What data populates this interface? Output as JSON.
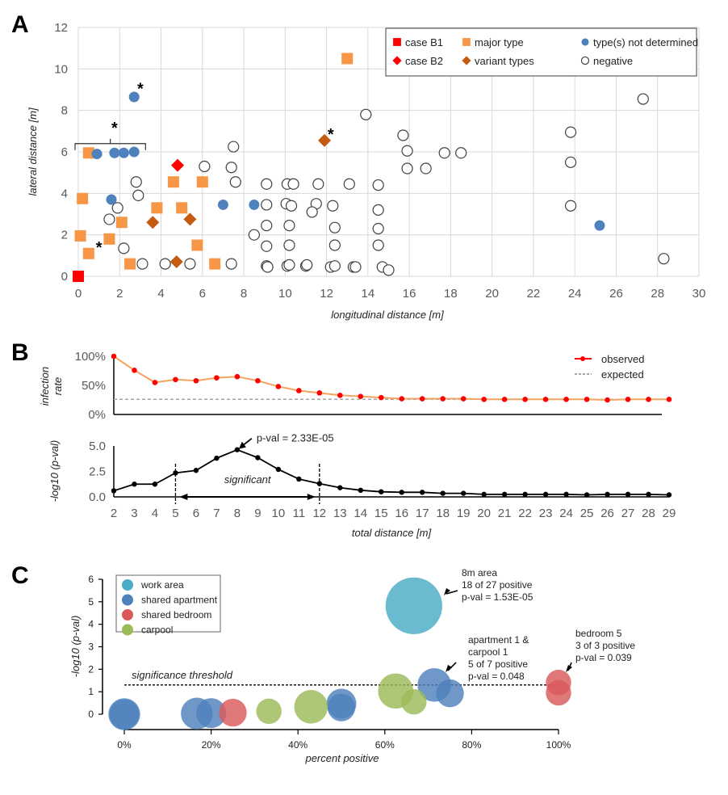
{
  "panels": {
    "A": {
      "letter": "A"
    },
    "B": {
      "letter": "B"
    },
    "C": {
      "letter": "C"
    }
  },
  "chart_data": [
    {
      "id": "A",
      "type": "scatter",
      "title": "",
      "xlabel": "longitudinal distance [m]",
      "ylabel": "lateral distance [m]",
      "xlim": [
        0,
        30
      ],
      "ylim": [
        0,
        12
      ],
      "xticks": [
        "0",
        "2",
        "4",
        "6",
        "8",
        "10",
        "12",
        "14",
        "16",
        "18",
        "20",
        "22",
        "24",
        "26",
        "28",
        "30"
      ],
      "yticks": [
        "0",
        "2",
        "4",
        "6",
        "8",
        "10",
        "12"
      ],
      "grid": true,
      "legend_position": "top-right",
      "colors": {
        "case_b1": "#ff0000",
        "case_b2": "#ff0000",
        "major_type": "#f79646",
        "variant_types": "#c55a11",
        "not_determined": "#4f81bd",
        "negative": "#ffffff"
      },
      "legend": [
        {
          "key": "case_b1",
          "label": "case B1",
          "marker": "square"
        },
        {
          "key": "major_type",
          "label": "major type",
          "marker": "square"
        },
        {
          "key": "not_determined",
          "label": "type(s) not determined",
          "marker": "circle"
        },
        {
          "key": "case_b2",
          "label": "case B2",
          "marker": "diamond"
        },
        {
          "key": "variant_types",
          "label": "variant types",
          "marker": "diamond"
        },
        {
          "key": "negative",
          "label": "negative",
          "marker": "open-circle"
        }
      ],
      "series": [
        {
          "key": "case_b1",
          "name": "case B1",
          "points": [
            [
              0,
              0
            ]
          ]
        },
        {
          "key": "case_b2",
          "name": "case B2",
          "points": [
            [
              4.8,
              5.35
            ]
          ]
        },
        {
          "key": "major_type",
          "name": "major type",
          "points": [
            [
              0.5,
              5.95
            ],
            [
              0.2,
              3.75
            ],
            [
              0.1,
              1.95
            ],
            [
              0.5,
              1.1
            ],
            [
              2.1,
              2.6
            ],
            [
              2.5,
              0.6
            ],
            [
              1.5,
              1.8
            ],
            [
              3.8,
              3.3
            ],
            [
              4.6,
              4.55
            ],
            [
              5.0,
              3.3
            ],
            [
              5.75,
              1.5
            ],
            [
              6.0,
              4.55
            ],
            [
              6.6,
              0.6
            ],
            [
              13.0,
              10.5
            ]
          ]
        },
        {
          "key": "variant_types",
          "name": "variant types",
          "points": [
            [
              3.6,
              2.6
            ],
            [
              4.75,
              0.7
            ],
            [
              5.4,
              2.75
            ],
            [
              11.9,
              6.55
            ]
          ]
        },
        {
          "key": "not_determined",
          "name": "type(s) not determined",
          "points": [
            [
              2.7,
              8.65
            ],
            [
              0.9,
              5.9
            ],
            [
              1.75,
              5.95
            ],
            [
              2.2,
              5.95
            ],
            [
              2.7,
              6.0
            ],
            [
              1.6,
              3.7
            ],
            [
              7.0,
              3.45
            ],
            [
              8.5,
              3.45
            ],
            [
              25.2,
              2.45
            ]
          ]
        },
        {
          "key": "negative",
          "name": "negative",
          "points": [
            [
              2.8,
              4.55
            ],
            [
              2.9,
              3.9
            ],
            [
              1.9,
              3.3
            ],
            [
              1.5,
              2.75
            ],
            [
              2.2,
              1.35
            ],
            [
              3.1,
              0.6
            ],
            [
              4.2,
              0.6
            ],
            [
              5.4,
              0.6
            ],
            [
              7.4,
              0.6
            ],
            [
              6.1,
              5.3
            ],
            [
              7.4,
              5.25
            ],
            [
              7.5,
              6.25
            ],
            [
              7.6,
              4.55
            ],
            [
              8.5,
              2.0
            ],
            [
              9.1,
              4.45
            ],
            [
              9.1,
              3.45
            ],
            [
              9.1,
              2.45
            ],
            [
              9.1,
              1.45
            ],
            [
              9.1,
              0.5
            ],
            [
              9.15,
              0.45
            ],
            [
              10.1,
              4.45
            ],
            [
              10.05,
              3.5
            ],
            [
              10.3,
              3.4
            ],
            [
              10.2,
              2.45
            ],
            [
              10.2,
              1.5
            ],
            [
              10.1,
              0.5
            ],
            [
              10.2,
              0.55
            ],
            [
              11.0,
              0.5
            ],
            [
              11.05,
              0.55
            ],
            [
              10.4,
              4.45
            ],
            [
              11.6,
              4.45
            ],
            [
              11.5,
              3.5
            ],
            [
              11.3,
              3.1
            ],
            [
              12.3,
              3.4
            ],
            [
              12.4,
              2.35
            ],
            [
              12.4,
              1.5
            ],
            [
              12.2,
              0.45
            ],
            [
              12.4,
              0.5
            ],
            [
              13.1,
              4.45
            ],
            [
              13.3,
              0.45
            ],
            [
              13.4,
              0.45
            ],
            [
              14.5,
              4.4
            ],
            [
              14.5,
              3.2
            ],
            [
              14.5,
              2.3
            ],
            [
              14.5,
              1.5
            ],
            [
              14.7,
              0.45
            ],
            [
              15.0,
              0.3
            ],
            [
              13.9,
              7.8
            ],
            [
              15.7,
              6.8
            ],
            [
              15.9,
              6.05
            ],
            [
              15.9,
              5.2
            ],
            [
              16.8,
              5.2
            ],
            [
              17.7,
              5.95
            ],
            [
              18.5,
              5.95
            ],
            [
              23.8,
              6.95
            ],
            [
              23.8,
              5.5
            ],
            [
              23.8,
              3.4
            ],
            [
              27.3,
              8.55
            ],
            [
              28.3,
              0.85
            ]
          ]
        }
      ],
      "annotations": [
        {
          "text": "*",
          "x": 3.0,
          "y": 9.1
        },
        {
          "text": "*",
          "x": 12.2,
          "y": 6.9
        },
        {
          "text": "*",
          "x": 1.0,
          "y": 1.45
        },
        {
          "text": "*",
          "x": 1.75,
          "y": 7.2,
          "bracket_from": 0,
          "bracket_to": 3.25,
          "bracket_y": 6.4
        }
      ]
    },
    {
      "id": "B-top",
      "type": "line",
      "xlabel": "",
      "ylabel": "infection rate",
      "ylim": [
        0,
        1
      ],
      "yticks": [
        "0%",
        "50%",
        "100%"
      ],
      "legend_position": "top-right",
      "legend": [
        {
          "label": "observed",
          "color": "#ff0000",
          "style": "line-marker"
        },
        {
          "label": "expected",
          "color": "#a6a6a6",
          "style": "dashed"
        }
      ],
      "x": [
        2,
        3,
        4,
        5,
        6,
        7,
        8,
        9,
        10,
        11,
        12,
        13,
        14,
        15,
        16,
        17,
        18,
        19,
        20,
        21,
        22,
        23,
        24,
        25,
        26,
        27,
        28,
        29
      ],
      "series": [
        {
          "name": "observed",
          "color": "#ff0000",
          "line_color": "#f4a460",
          "values": [
            1.0,
            0.76,
            0.55,
            0.6,
            0.58,
            0.63,
            0.65,
            0.58,
            0.48,
            0.41,
            0.37,
            0.33,
            0.31,
            0.29,
            0.27,
            0.27,
            0.27,
            0.27,
            0.26,
            0.26,
            0.26,
            0.26,
            0.26,
            0.26,
            0.25,
            0.26,
            0.26,
            0.26
          ]
        },
        {
          "name": "expected",
          "color": "#a6a6a6",
          "values_constant": 0.26
        }
      ]
    },
    {
      "id": "B-bottom",
      "type": "line",
      "xlabel": "total distance [m]",
      "ylabel": "-log10 (p-val)",
      "ylim": [
        0,
        5
      ],
      "yticks": [
        "0.0",
        "2.5",
        "5.0"
      ],
      "xticks": [
        "2",
        "3",
        "4",
        "5",
        "6",
        "7",
        "8",
        "9",
        "10",
        "11",
        "12",
        "13",
        "14",
        "15",
        "16",
        "17",
        "18",
        "19",
        "20",
        "21",
        "22",
        "23",
        "24",
        "25",
        "26",
        "27",
        "28",
        "29"
      ],
      "x": [
        2,
        3,
        4,
        5,
        6,
        7,
        8,
        9,
        10,
        11,
        12,
        13,
        14,
        15,
        16,
        17,
        18,
        19,
        20,
        21,
        22,
        23,
        24,
        25,
        26,
        27,
        28,
        29
      ],
      "series": [
        {
          "name": "-log10(p-val)",
          "color": "#000000",
          "values": [
            0.6,
            1.25,
            1.25,
            2.35,
            2.6,
            3.8,
            4.63,
            3.85,
            2.7,
            1.75,
            1.3,
            0.9,
            0.65,
            0.5,
            0.45,
            0.45,
            0.35,
            0.35,
            0.25,
            0.25,
            0.25,
            0.25,
            0.25,
            0.2,
            0.25,
            0.25,
            0.25,
            0.2
          ]
        }
      ],
      "significant_range": [
        5,
        12
      ],
      "annotations": [
        {
          "text": "p-val = 2.33E-05",
          "x": 8,
          "y": 4.63
        },
        {
          "text": "significant",
          "x": 8.5,
          "y": 1.35
        }
      ]
    },
    {
      "id": "C",
      "type": "scatter",
      "subtype": "bubble",
      "xlabel": "percent positive",
      "ylabel": "-log10 (p-val)",
      "xlim": [
        0,
        1
      ],
      "ylim": [
        0,
        6
      ],
      "xticks": [
        "0%",
        "20%",
        "40%",
        "60%",
        "80%",
        "100%"
      ],
      "yticks": [
        "0",
        "1",
        "2",
        "3",
        "4",
        "5",
        "6"
      ],
      "legend_position": "top-left",
      "threshold": {
        "value": 1.3,
        "label": "significance threshold"
      },
      "legend": [
        {
          "key": "work_area",
          "label": "work area",
          "color": "#4bacc6"
        },
        {
          "key": "shared_apartment",
          "label": "shared apartment",
          "color": "#4f81bd"
        },
        {
          "key": "shared_bedroom",
          "label": "shared bedroom",
          "color": "#d9595b"
        },
        {
          "key": "carpool",
          "label": "carpool",
          "color": "#9bbb59"
        }
      ],
      "series": [
        {
          "key": "work_area",
          "name": "work area",
          "points": [
            {
              "x": 0.667,
              "y": 4.82,
              "size": 27
            }
          ]
        },
        {
          "key": "shared_apartment",
          "name": "shared apartment",
          "points": [
            {
              "x": 0.0,
              "y": 0.0,
              "size": 6
            },
            {
              "x": 0.0,
              "y": 0.0,
              "size": 5
            },
            {
              "x": 0.167,
              "y": 0.03,
              "size": 6
            },
            {
              "x": 0.2,
              "y": 0.05,
              "size": 5
            },
            {
              "x": 0.5,
              "y": 0.47,
              "size": 5
            },
            {
              "x": 0.5,
              "y": 0.3,
              "size": 4
            },
            {
              "x": 0.714,
              "y": 1.3,
              "size": 7
            },
            {
              "x": 0.75,
              "y": 0.93,
              "size": 4
            }
          ]
        },
        {
          "key": "shared_bedroom",
          "name": "shared bedroom",
          "points": [
            {
              "x": 0.25,
              "y": 0.07,
              "size": 4
            },
            {
              "x": 1.0,
              "y": 1.41,
              "size": 3
            },
            {
              "x": 1.0,
              "y": 0.95,
              "size": 3
            }
          ]
        },
        {
          "key": "carpool",
          "name": "carpool",
          "points": [
            {
              "x": 0.333,
              "y": 0.13,
              "size": 3
            },
            {
              "x": 0.43,
              "y": 0.33,
              "size": 7
            },
            {
              "x": 0.625,
              "y": 1.03,
              "size": 8
            },
            {
              "x": 0.667,
              "y": 0.55,
              "size": 3
            }
          ]
        }
      ],
      "annotations": [
        {
          "lines": [
            "8m area",
            "18 of 27 positive",
            "p-val = 1.53E-05"
          ]
        },
        {
          "lines": [
            "apartment 1 &",
            "carpool 1",
            "5 of 7 positive",
            "p-val = 0.048"
          ]
        },
        {
          "lines": [
            "bedroom 5",
            "3 of 3 positive",
            "p-val = 0.039"
          ]
        }
      ]
    }
  ]
}
